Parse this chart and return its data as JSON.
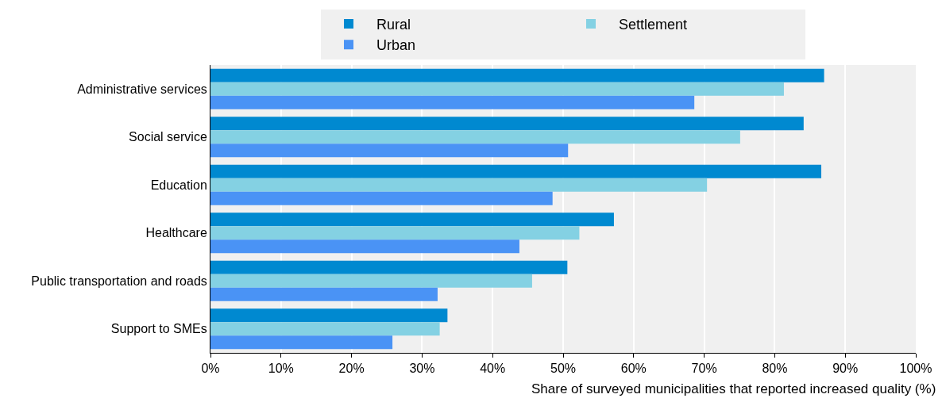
{
  "chart_data": {
    "type": "bar",
    "orientation": "horizontal",
    "xlabel": "Share of surveyed municipalities that reported increased quality (%)",
    "categories": [
      "Administrative services",
      "Social service",
      "Education",
      "Healthcare",
      "Public transportation and roads",
      "Support to SMEs"
    ],
    "series": [
      {
        "name": "Rural",
        "color": "#0089d0",
        "values": [
          87.0,
          84.1,
          86.6,
          57.2,
          50.6,
          33.6
        ]
      },
      {
        "name": "Settlement",
        "color": "#84d1e3",
        "values": [
          81.3,
          75.1,
          70.4,
          52.3,
          45.6,
          32.5
        ]
      },
      {
        "name": "Urban",
        "color": "#4a93f5",
        "values": [
          68.6,
          50.7,
          48.5,
          43.8,
          32.2,
          25.8
        ]
      }
    ],
    "xlim": [
      0,
      100
    ],
    "xticks": [
      {
        "value": 0,
        "label": "0%"
      },
      {
        "value": 10,
        "label": "10%"
      },
      {
        "value": 20,
        "label": "20%"
      },
      {
        "value": 30,
        "label": "30%"
      },
      {
        "value": 40,
        "label": "40%"
      },
      {
        "value": 50,
        "label": "50%"
      },
      {
        "value": 60,
        "label": "60%"
      },
      {
        "value": 70,
        "label": "70%"
      },
      {
        "value": 80,
        "label": "80%"
      },
      {
        "value": 90,
        "label": "90%"
      },
      {
        "value": 100,
        "label": "100%"
      }
    ],
    "grid": "x",
    "legend": "top"
  }
}
